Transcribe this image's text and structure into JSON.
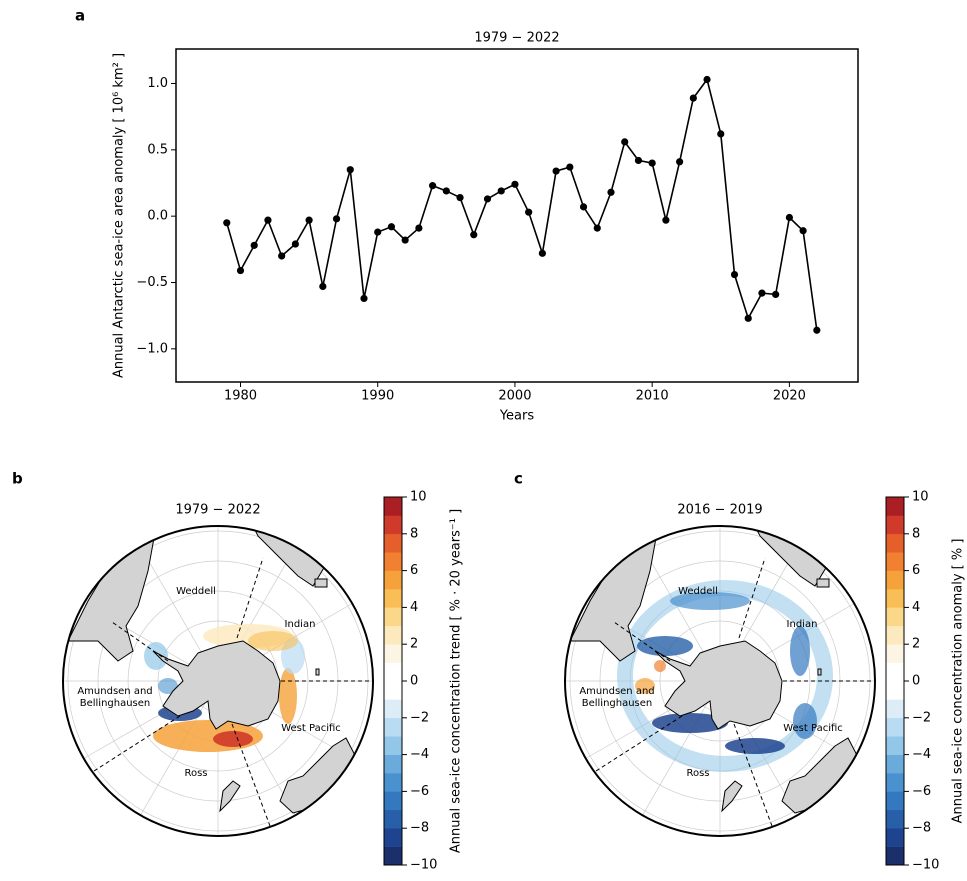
{
  "chart_data": [
    {
      "type": "line",
      "panel_label": "a",
      "title": "1979 − 2022",
      "x_label": "Years",
      "y_label": "Annual Antarctic sea-ice area anomaly [ 10⁶ km² ]",
      "x": [
        1979,
        1980,
        1981,
        1982,
        1983,
        1984,
        1985,
        1986,
        1987,
        1988,
        1989,
        1990,
        1991,
        1992,
        1993,
        1994,
        1995,
        1996,
        1997,
        1998,
        1999,
        2000,
        2001,
        2002,
        2003,
        2004,
        2005,
        2006,
        2007,
        2008,
        2009,
        2010,
        2011,
        2012,
        2013,
        2014,
        2015,
        2016,
        2017,
        2018,
        2019,
        2020,
        2021,
        2022
      ],
      "series": [
        {
          "color": "#000000",
          "values": [
            -0.05,
            -0.41,
            -0.22,
            -0.03,
            -0.3,
            -0.21,
            -0.03,
            -0.53,
            -0.02,
            0.35,
            -0.62,
            -0.12,
            -0.08,
            -0.18,
            -0.09,
            0.23,
            0.19,
            0.14,
            -0.14,
            0.13,
            0.19,
            0.24,
            0.03,
            -0.28,
            0.34,
            0.37,
            0.07,
            -0.09,
            0.18,
            0.56,
            0.42,
            0.4,
            -0.03,
            0.41,
            0.89,
            1.03,
            0.62,
            -0.44,
            -0.77,
            -0.58,
            -0.59,
            -0.01,
            -0.11,
            -0.86
          ]
        }
      ],
      "xlim": [
        1975.3,
        2025
      ],
      "xticks": [
        1980,
        1990,
        2000,
        2010,
        2020
      ],
      "ylim": [
        -1.25,
        1.26
      ],
      "yticks": [
        {
          "value": -1,
          "label": "−1.0"
        },
        {
          "value": -0.5,
          "label": "−0.5"
        },
        {
          "value": 0,
          "label": "0.0"
        },
        {
          "value": 0.5,
          "label": "0.5"
        },
        {
          "value": 1,
          "label": "1.0"
        }
      ]
    },
    {
      "type": "map",
      "panel_label": "b",
      "title": "1979 − 2022",
      "regions": [
        "Weddell",
        "Indian",
        "Amundsen and",
        "Bellinghausen",
        "West Pacific",
        "Ross"
      ],
      "colorbar": {
        "label": "Annual sea-ice concentration trend [ % · 20 years⁻¹ ]",
        "lim": [
          -10,
          10
        ],
        "ticks": [
          {
            "value": -10,
            "label": "−10"
          },
          {
            "value": -8,
            "label": "−8"
          },
          {
            "value": -6,
            "label": "−6"
          },
          {
            "value": -4,
            "label": "−4"
          },
          {
            "value": -2,
            "label": "−2"
          },
          0,
          2,
          4,
          6,
          8,
          10
        ],
        "colors": [
          "#1b2f6b",
          "#1f448f",
          "#2760a8",
          "#3478bf",
          "#4a92cf",
          "#6aabdc",
          "#92c7e9",
          "#b9dcf2",
          "#dcedf8",
          "#ffffff",
          "#ffffff",
          "#fdf5e3",
          "#fce9bd",
          "#fbd78a",
          "#f9bf56",
          "#f6a23a",
          "#f18130",
          "#e45f2a",
          "#cf3a2a",
          "#a91f24"
        ]
      }
    },
    {
      "type": "map",
      "panel_label": "c",
      "title": "2016 − 2019",
      "regions": [
        "Weddell",
        "Indian",
        "Amundsen and",
        "Bellinghausen",
        "West Pacific",
        "Ross"
      ],
      "colorbar": {
        "label": "Annual sea-ice concentration anomaly [ % ]",
        "lim": [
          -10,
          10
        ],
        "ticks": [
          {
            "value": -10,
            "label": "−10"
          },
          {
            "value": -8,
            "label": "−8"
          },
          {
            "value": -6,
            "label": "−6"
          },
          {
            "value": -4,
            "label": "−4"
          },
          {
            "value": -2,
            "label": "−2"
          },
          0,
          2,
          4,
          6,
          8,
          10
        ],
        "colors": [
          "#1b2f6b",
          "#1f448f",
          "#2760a8",
          "#3478bf",
          "#4a92cf",
          "#6aabdc",
          "#92c7e9",
          "#b9dcf2",
          "#dcedf8",
          "#ffffff",
          "#ffffff",
          "#fdf5e3",
          "#fce9bd",
          "#fbd78a",
          "#f9bf56",
          "#f6a23a",
          "#f18130",
          "#e45f2a",
          "#cf3a2a",
          "#a91f24"
        ]
      }
    }
  ]
}
